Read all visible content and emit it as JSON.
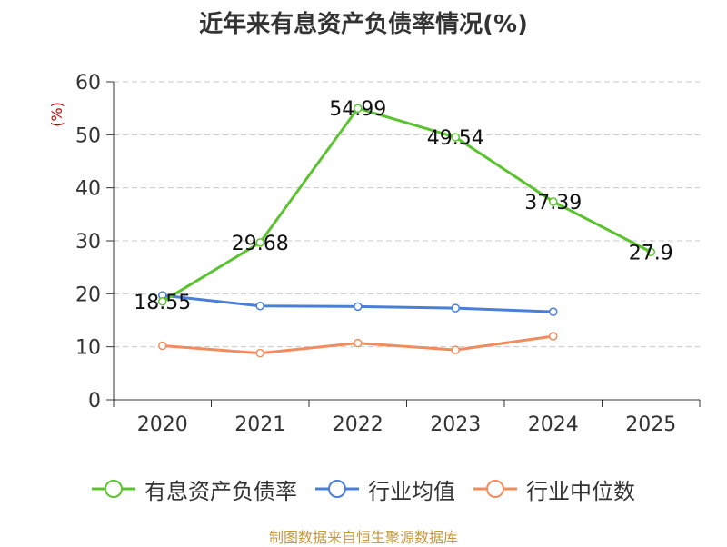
{
  "chart_data": {
    "type": "line",
    "title": "近年来有息资产负债率情况(%)",
    "ylabel": "(%)",
    "xlabel": "",
    "categories": [
      "2020",
      "2021",
      "2022",
      "2023",
      "2024",
      "2025"
    ],
    "ylim": [
      0,
      60
    ],
    "yticks": [
      0,
      10,
      20,
      30,
      40,
      50,
      60
    ],
    "grid": true,
    "legend_position": "bottom",
    "series": [
      {
        "name": "有息资产负债率",
        "color": "#5bc330",
        "values": [
          18.55,
          29.68,
          54.99,
          49.54,
          37.39,
          27.9
        ],
        "labels": [
          "18.55",
          "29.68",
          "54.99",
          "49.54",
          "37.39",
          "27.9"
        ]
      },
      {
        "name": "行业均值",
        "color": "#4a7fd8",
        "values": [
          19.7,
          17.7,
          17.6,
          17.3,
          16.6,
          null
        ]
      },
      {
        "name": "行业中位数",
        "color": "#f28c5e",
        "values": [
          10.2,
          8.8,
          10.7,
          9.4,
          12.0,
          null
        ]
      }
    ]
  },
  "footer": {
    "source": "制图数据来自恒生聚源数据库"
  }
}
